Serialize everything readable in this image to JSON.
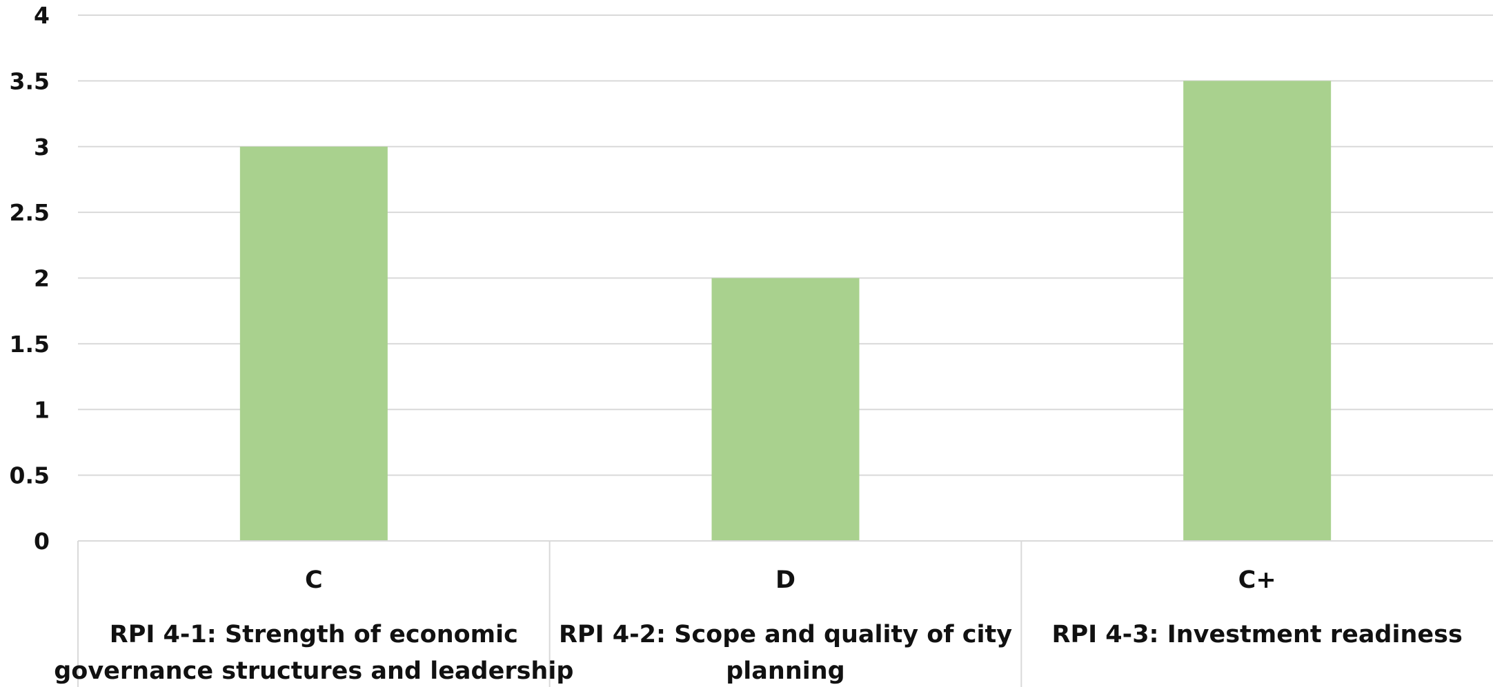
{
  "colors": {
    "bar": "#a9d18e",
    "grid": "#d9d9d9",
    "text": "#111111"
  },
  "chart_data": {
    "type": "bar",
    "categories": [
      [
        "C",
        "RPI 4-1: Strength of economic governance structures and leadership"
      ],
      [
        "D",
        "RPI 4-2: Scope and quality of city planning"
      ],
      [
        "C+",
        "RPI 4-3: Investment readiness"
      ]
    ],
    "category_lines": [
      {
        "grade": "C",
        "label_lines": [
          "RPI 4-1: Strength of economic",
          "governance structures and leadership"
        ]
      },
      {
        "grade": "D",
        "label_lines": [
          "RPI 4-2: Scope and quality of city",
          "planning"
        ]
      },
      {
        "grade": "C+",
        "label_lines": [
          "RPI 4-3: Investment readiness"
        ]
      }
    ],
    "values": [
      3,
      2,
      3.5
    ],
    "ylim": [
      0,
      4
    ],
    "yticks": [
      "0",
      "0.5",
      "1",
      "1.5",
      "2",
      "2.5",
      "3",
      "3.5",
      "4"
    ],
    "title": "",
    "xlabel": "",
    "ylabel": "",
    "grid": true,
    "legend": "none"
  }
}
